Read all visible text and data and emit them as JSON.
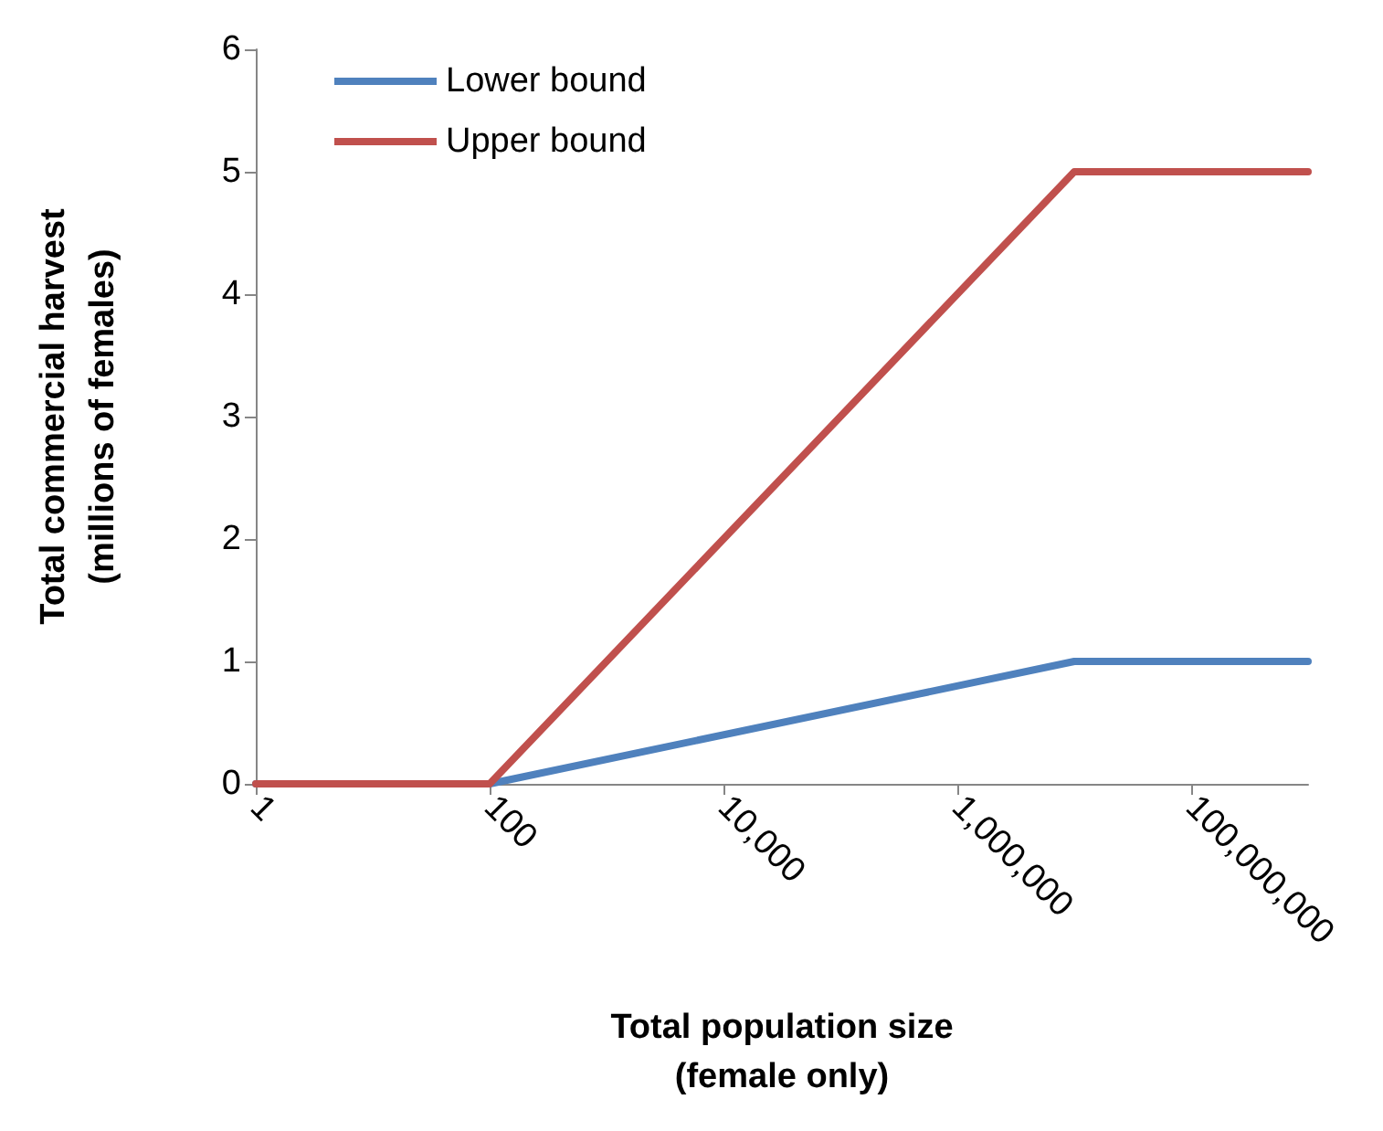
{
  "chart_data": {
    "type": "line",
    "xlabel": "Total population size\n(female only)",
    "ylabel": "Total commercial harvest\n(millions of females)",
    "log": "x",
    "x": [
      1,
      100,
      10000000,
      1000000000
    ],
    "series": [
      {
        "name": "Lower bound",
        "color": "#4f81bd",
        "values": [
          0,
          0,
          1,
          1
        ]
      },
      {
        "name": "Upper bound",
        "color": "#c0504d",
        "values": [
          0,
          0,
          5,
          5
        ]
      }
    ],
    "xlim": [
      1,
      1000000000
    ],
    "xticks": [
      {
        "value": 1,
        "label": "1"
      },
      {
        "value": 100,
        "label": "100"
      },
      {
        "value": 10000,
        "label": "10,000"
      },
      {
        "value": 1000000,
        "label": "1,000,000"
      },
      {
        "value": 100000000,
        "label": "100,000,000"
      }
    ],
    "ylim": [
      0,
      6
    ],
    "yticks": [
      0,
      1,
      2,
      3,
      4,
      5,
      6
    ],
    "grid": false,
    "legend": "top left",
    "marker": "none",
    "line_style": "solid"
  }
}
